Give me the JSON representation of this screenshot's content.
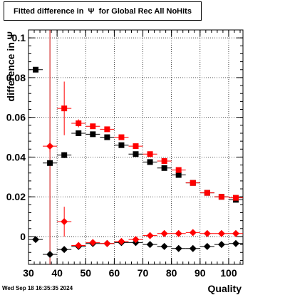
{
  "chart_data": {
    "type": "scatter",
    "title": "Fitted difference in  Ψ  for Global Rec All NoHits",
    "xlabel": "Quality",
    "ylabel": "difference in  Ψ",
    "xlim": [
      30,
      105
    ],
    "ylim": [
      -0.014,
      0.104
    ],
    "x_ticks": [
      30,
      40,
      50,
      60,
      70,
      80,
      90,
      100
    ],
    "y_ticks": [
      0,
      0.02,
      0.04,
      0.06,
      0.08,
      0.1
    ],
    "y_tick_labels": [
      "0",
      "0.02",
      "0.04",
      "0.06",
      "0.08",
      "0.1"
    ],
    "grid": true,
    "vertical_line_x": 37.5,
    "vertical_line_color": "#cc0000",
    "x_bin_half_width": 2.5,
    "series": [
      {
        "marker": "square",
        "color": "#000000",
        "x": [
          32.5,
          37.5,
          42.5,
          47.5,
          52.5,
          57.5,
          62.5,
          67.5,
          72.5,
          77.5,
          82.5,
          87.5,
          92.5,
          97.5,
          102.5
        ],
        "y": [
          0.084,
          0.037,
          0.041,
          0.052,
          0.0515,
          0.05,
          0.046,
          0.0415,
          0.0375,
          0.0345,
          0.031,
          0.027,
          0.022,
          0.02,
          0.0185
        ],
        "yerr": [
          0.001,
          0.001,
          0.0015,
          0.0012,
          0.0008,
          0.0007,
          0.0006,
          0.0006,
          0.0006,
          0.0006,
          0.0006,
          0.0006,
          0.0006,
          0.0007,
          0.0007
        ]
      },
      {
        "marker": "square",
        "color": "#ff0000",
        "x": [
          42.5,
          47.5,
          52.5,
          57.5,
          62.5,
          67.5,
          72.5,
          77.5,
          82.5,
          87.5,
          92.5,
          97.5,
          102.5
        ],
        "y": [
          0.0645,
          0.057,
          0.0555,
          0.054,
          0.05,
          0.0455,
          0.0415,
          0.038,
          0.0335,
          0.027,
          0.022,
          0.02,
          0.0195
        ],
        "yerr": [
          0.0135,
          0.002,
          0.0012,
          0.001,
          0.0008,
          0.0008,
          0.0008,
          0.0008,
          0.0008,
          0.0008,
          0.0008,
          0.0008,
          0.0008
        ]
      },
      {
        "marker": "diamond",
        "color": "#000000",
        "x": [
          32.5,
          37.5,
          42.5,
          47.5,
          52.5,
          57.5,
          62.5,
          67.5,
          72.5,
          77.5,
          82.5,
          87.5,
          92.5,
          97.5,
          102.5
        ],
        "y": [
          -0.0015,
          -0.009,
          -0.0065,
          -0.005,
          -0.0035,
          -0.0035,
          -0.003,
          -0.003,
          -0.004,
          -0.005,
          -0.006,
          -0.006,
          -0.005,
          -0.004,
          -0.0035
        ],
        "yerr": [
          0.0005,
          0.0006,
          0.0005,
          0.0004,
          0.0003,
          0.0003,
          0.0003,
          0.0003,
          0.0003,
          0.0003,
          0.0003,
          0.0003,
          0.0003,
          0.0003,
          0.0003
        ]
      },
      {
        "marker": "diamond",
        "color": "#ff0000",
        "x": [
          37.5,
          42.5,
          47.5,
          52.5,
          57.5,
          62.5,
          67.5,
          72.5,
          77.5,
          82.5,
          87.5,
          92.5,
          97.5,
          102.5
        ],
        "y": [
          0.0455,
          0.0075,
          -0.0045,
          -0.003,
          -0.0035,
          -0.0025,
          -0.0015,
          0.0005,
          0.0015,
          0.0015,
          0.002,
          0.0015,
          0.0015,
          0.0015
        ],
        "yerr": [
          0.003,
          0.0075,
          0.0008,
          0.0005,
          0.0004,
          0.0004,
          0.0004,
          0.0004,
          0.0004,
          0.0004,
          0.0004,
          0.0004,
          0.0004,
          0.0004
        ]
      }
    ]
  },
  "footer": {
    "datestamp": "Wed Sep 18 16:35:35 2024"
  }
}
